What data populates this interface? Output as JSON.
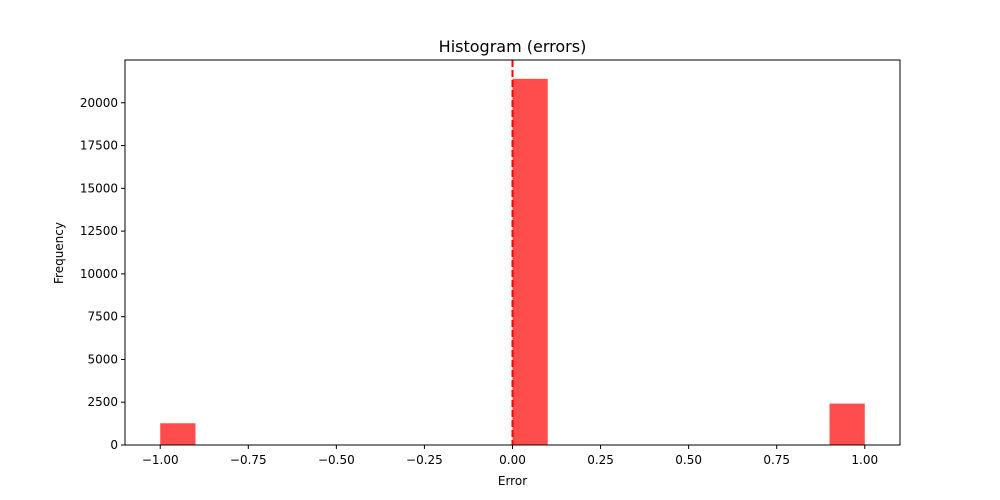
{
  "chart_data": {
    "type": "bar",
    "title": "Histogram (errors)",
    "xlabel": "Error",
    "ylabel": "Frequency",
    "xlim": [
      -1.1,
      1.1
    ],
    "ylim": [
      0,
      22500
    ],
    "x_ticks": [
      -1.0,
      -0.75,
      -0.5,
      -0.25,
      0.0,
      0.25,
      0.5,
      0.75,
      1.0
    ],
    "x_tick_labels": [
      "−1.00",
      "−0.75",
      "−0.50",
      "−0.25",
      "0.00",
      "0.25",
      "0.50",
      "0.75",
      "1.00"
    ],
    "y_ticks": [
      0,
      2500,
      5000,
      7500,
      10000,
      12500,
      15000,
      17500,
      20000
    ],
    "y_tick_labels": [
      "0",
      "2500",
      "5000",
      "7500",
      "10000",
      "12500",
      "15000",
      "17500",
      "20000"
    ],
    "bins": [
      {
        "x0": -1.0,
        "x1": -0.9,
        "count": 1270
      },
      {
        "x0": 0.0,
        "x1": 0.1,
        "count": 21400
      },
      {
        "x0": 0.9,
        "x1": 1.0,
        "count": 2420
      }
    ],
    "bar_color": "#ff4c4c",
    "reference_line": {
      "x": 0.0,
      "color": "#ff0000",
      "style": "dashed"
    },
    "grid": false,
    "legend": "none"
  }
}
